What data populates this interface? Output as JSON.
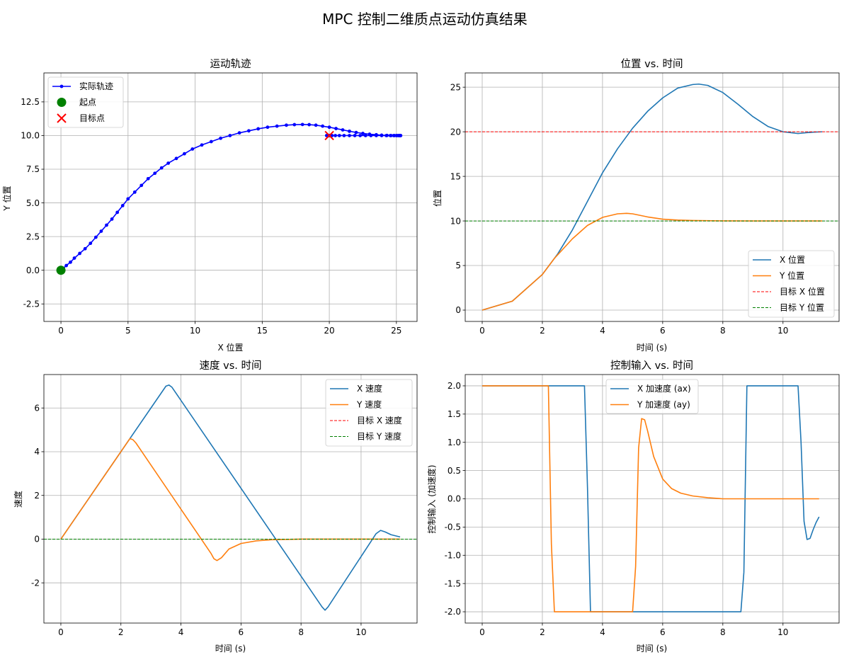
{
  "figure": {
    "suptitle": "MPC 控制二维质点运动仿真结果"
  },
  "chart_data": [
    {
      "id": "traj",
      "type": "line",
      "title": "运动轨迹",
      "xlabel": "X 位置",
      "ylabel": "Y 位置",
      "xlim": [
        -1.27,
        26.54
      ],
      "ylim": [
        -3.8,
        14.65
      ],
      "xticks": [
        0,
        5,
        10,
        15,
        20,
        25
      ],
      "xtick_labels": [
        "0",
        "5",
        "10",
        "15",
        "20",
        "25"
      ],
      "yticks": [
        -2.5,
        0,
        2.5,
        5,
        7.5,
        10,
        12.5
      ],
      "ytick_labels": [
        "-2.5",
        "0.0",
        "2.5",
        "5.0",
        "7.5",
        "10.0",
        "12.5"
      ],
      "grid": true,
      "legend": "top-left",
      "series": [
        {
          "name": "实际轨迹",
          "color": "#0000ff",
          "marker": "dot",
          "x": [
            0,
            0.05,
            0.18,
            0.4,
            0.71,
            1.0,
            1.4,
            1.8,
            2.2,
            2.6,
            3.0,
            3.4,
            3.8,
            4.2,
            4.6,
            5.0,
            5.5,
            6.0,
            6.5,
            7.0,
            7.5,
            8.0,
            8.6,
            9.2,
            9.8,
            10.5,
            11.2,
            11.9,
            12.6,
            13.3,
            14.0,
            14.7,
            15.4,
            16.1,
            16.8,
            17.4,
            18.0,
            18.5,
            19.0,
            19.5,
            20.0,
            20.5,
            21.0,
            21.5,
            22.0,
            22.5,
            23.0,
            23.5,
            23.9,
            24.3,
            24.6,
            24.85,
            25.05,
            25.2,
            25.28,
            25.32,
            25.3,
            25.25,
            25.15,
            25.0,
            24.8,
            24.55,
            24.25,
            23.9,
            23.5,
            23.1,
            22.7,
            22.3,
            21.9,
            21.5,
            21.1,
            20.75,
            20.45,
            20.2,
            20.0,
            19.85,
            19.8,
            19.88,
            20.0
          ],
          "y": [
            0,
            0.05,
            0.15,
            0.35,
            0.6,
            0.9,
            1.25,
            1.6,
            2.0,
            2.45,
            2.9,
            3.35,
            3.8,
            4.3,
            4.8,
            5.3,
            5.8,
            6.3,
            6.8,
            7.2,
            7.6,
            7.95,
            8.3,
            8.65,
            9.0,
            9.3,
            9.55,
            9.8,
            10.0,
            10.2,
            10.35,
            10.5,
            10.62,
            10.7,
            10.77,
            10.81,
            10.82,
            10.81,
            10.77,
            10.7,
            10.62,
            10.52,
            10.42,
            10.32,
            10.23,
            10.16,
            10.1,
            10.06,
            10.03,
            10.01,
            10.0,
            10.0,
            10.0,
            10.0,
            10.0,
            10.0,
            10.0,
            10.0,
            10.0,
            10.0,
            10.0,
            10.0,
            10.0,
            10.0,
            10.0,
            10.0,
            10.0,
            10.0,
            10.0,
            10.0,
            10.0,
            10.0,
            10.0,
            10.0,
            10.0,
            10.0,
            10.0,
            10.0,
            10.0
          ]
        },
        {
          "name": "起点",
          "color": "#008000",
          "marker": "big-dot",
          "x": [
            0
          ],
          "y": [
            0
          ]
        },
        {
          "name": "目标点",
          "color": "#ff0000",
          "marker": "x",
          "x": [
            20
          ],
          "y": [
            10
          ]
        }
      ]
    },
    {
      "id": "pos",
      "type": "line",
      "title": "位置 vs. 时间",
      "xlabel": "时间 (s)",
      "ylabel": "位置",
      "xlim": [
        -0.565,
        11.865
      ],
      "ylim": [
        -1.27,
        26.6
      ],
      "xticks": [
        0,
        2,
        4,
        6,
        8,
        10
      ],
      "xtick_labels": [
        "0",
        "2",
        "4",
        "6",
        "8",
        "10"
      ],
      "yticks": [
        0,
        5,
        10,
        15,
        20,
        25
      ],
      "ytick_labels": [
        "0",
        "5",
        "10",
        "15",
        "20",
        "25"
      ],
      "grid": true,
      "legend": "bottom-right",
      "series": [
        {
          "name": "X 位置",
          "color": "#1f77b4",
          "x": [
            0,
            1,
            2,
            2.5,
            3.0,
            3.5,
            4.0,
            4.5,
            5.0,
            5.5,
            6.0,
            6.5,
            7.0,
            7.2,
            7.5,
            8.0,
            8.5,
            9.0,
            9.5,
            10.0,
            10.5,
            10.8,
            11.0,
            11.3
          ],
          "y": [
            0,
            1,
            4,
            6.25,
            9.0,
            12.2,
            15.4,
            18.1,
            20.4,
            22.3,
            23.8,
            24.9,
            25.3,
            25.35,
            25.2,
            24.4,
            23.1,
            21.7,
            20.6,
            20.0,
            19.8,
            19.9,
            19.95,
            20.0
          ]
        },
        {
          "name": "Y 位置",
          "color": "#ff7f0e",
          "x": [
            0,
            1,
            2,
            2.4,
            3.0,
            3.5,
            4.0,
            4.5,
            4.8,
            5.0,
            5.5,
            6.0,
            6.5,
            7.0,
            8.0,
            9.0,
            10.0,
            11.3
          ],
          "y": [
            0,
            1,
            4,
            5.8,
            8.0,
            9.5,
            10.4,
            10.8,
            10.85,
            10.8,
            10.45,
            10.2,
            10.1,
            10.05,
            10.01,
            10.0,
            10.0,
            10.0
          ]
        },
        {
          "name": "目标 X 位置",
          "color": "#ff0000",
          "style": "dashed",
          "hline": 20
        },
        {
          "name": "目标 Y 位置",
          "color": "#008000",
          "style": "dashed",
          "hline": 10
        }
      ]
    },
    {
      "id": "vel",
      "type": "line",
      "title": "速度 vs. 时间",
      "xlabel": "时间 (s)",
      "ylabel": "速度",
      "xlim": [
        -0.565,
        11.865
      ],
      "ylim": [
        -3.84,
        7.53
      ],
      "xticks": [
        0,
        2,
        4,
        6,
        8,
        10
      ],
      "xtick_labels": [
        "0",
        "2",
        "4",
        "6",
        "8",
        "10"
      ],
      "yticks": [
        -2,
        0,
        2,
        4,
        6
      ],
      "ytick_labels": [
        "-2",
        "0",
        "2",
        "4",
        "6"
      ],
      "grid": true,
      "legend": "top-right",
      "series": [
        {
          "name": "X 速度",
          "color": "#1f77b4",
          "x": [
            0,
            3.5,
            3.6,
            3.7,
            8.7,
            8.8,
            8.9,
            10.5,
            10.65,
            10.8,
            11.0,
            11.3
          ],
          "y": [
            0,
            7.0,
            7.05,
            6.95,
            -3.1,
            -3.25,
            -3.1,
            0.25,
            0.4,
            0.33,
            0.2,
            0.1
          ]
        },
        {
          "name": "Y 速度",
          "color": "#ff7f0e",
          "x": [
            0,
            2.3,
            2.4,
            2.5,
            5.0,
            5.1,
            5.2,
            5.35,
            5.6,
            6.0,
            6.5,
            7.0,
            8.0,
            9.0,
            11.3
          ],
          "y": [
            0,
            4.6,
            4.55,
            4.4,
            -0.65,
            -0.9,
            -0.98,
            -0.85,
            -0.45,
            -0.2,
            -0.08,
            -0.03,
            0,
            0,
            0
          ]
        },
        {
          "name": "目标 X 速度",
          "color": "#ff0000",
          "style": "dashed",
          "hline": 0
        },
        {
          "name": "目标 Y 速度",
          "color": "#008000",
          "style": "dashed",
          "hline": 0
        }
      ]
    },
    {
      "id": "ctrl",
      "type": "line",
      "title": "控制输入 vs. 时间",
      "xlabel": "时间 (s)",
      "ylabel": "控制输入 (加速度)",
      "xlim": [
        -0.565,
        11.865
      ],
      "ylim": [
        -2.2,
        2.2
      ],
      "xticks": [
        0,
        2,
        4,
        6,
        8,
        10
      ],
      "xtick_labels": [
        "0",
        "2",
        "4",
        "6",
        "8",
        "10"
      ],
      "yticks": [
        -2.0,
        -1.5,
        -1.0,
        -0.5,
        0.0,
        0.5,
        1.0,
        1.5,
        2.0
      ],
      "ytick_labels": [
        "-2.0",
        "-1.5",
        "-1.0",
        "-0.5",
        "0.0",
        "0.5",
        "1.0",
        "1.5",
        "2.0"
      ],
      "grid": true,
      "legend": "top-center",
      "series": [
        {
          "name": "X 加速度 (ax)",
          "color": "#1f77b4",
          "x": [
            0,
            3.4,
            3.5,
            3.6,
            8.6,
            8.7,
            8.8,
            10.5,
            10.6,
            10.7,
            10.8,
            10.9,
            11.0,
            11.1,
            11.2
          ],
          "y": [
            2.0,
            2.0,
            0.2,
            -2.0,
            -2.0,
            -1.3,
            2.0,
            2.0,
            1.0,
            -0.4,
            -0.72,
            -0.7,
            -0.55,
            -0.42,
            -0.32
          ]
        },
        {
          "name": "Y 加速度 (ay)",
          "color": "#ff7f0e",
          "x": [
            0,
            2.2,
            2.3,
            2.4,
            5.0,
            5.1,
            5.2,
            5.3,
            5.4,
            5.5,
            5.7,
            6.0,
            6.3,
            6.6,
            7.0,
            7.5,
            8.0,
            9.0,
            11.2
          ],
          "y": [
            2.0,
            2.0,
            -0.8,
            -2.0,
            -2.0,
            -1.2,
            0.9,
            1.42,
            1.4,
            1.2,
            0.75,
            0.35,
            0.18,
            0.1,
            0.05,
            0.02,
            0.0,
            0.0,
            0.0
          ]
        }
      ]
    }
  ]
}
